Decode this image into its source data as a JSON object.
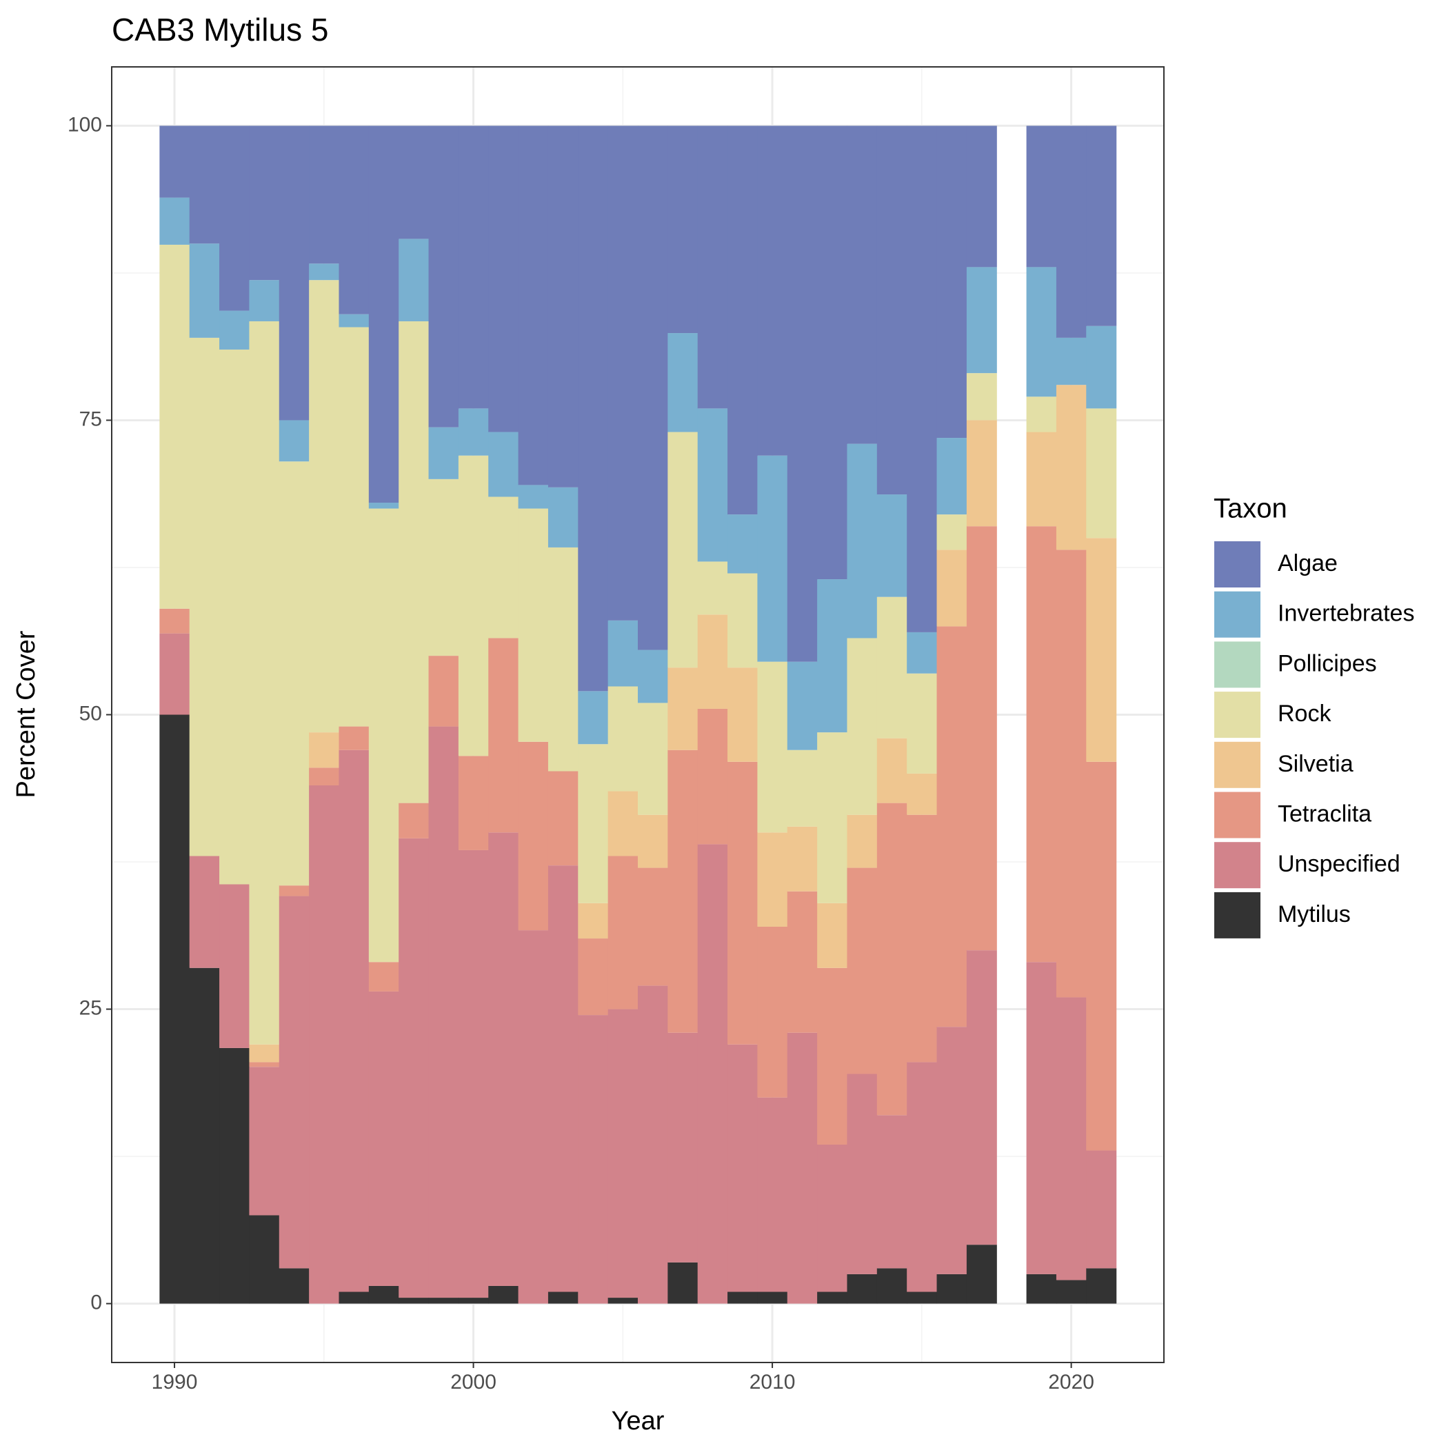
{
  "chart_data": {
    "type": "stacked-bar",
    "title": "CAB3 Mytilus 5",
    "x_label": "Year",
    "y_label": "Percent Cover",
    "legend_title": "Taxon",
    "x": [
      1990,
      1991,
      1992,
      1993,
      1994,
      1995,
      1996,
      1997,
      1998,
      1999,
      2000,
      2001,
      2002,
      2003,
      2004,
      2005,
      2006,
      2007,
      2008,
      2009,
      2010,
      2011,
      2012,
      2013,
      2014,
      2015,
      2016,
      2017,
      2018,
      2019,
      2020,
      2021
    ],
    "series": [
      {
        "name": "Algae",
        "color": "#6f7db8",
        "values": [
          6.1,
          10,
          15.7,
          13.1,
          25,
          11.7,
          16,
          32,
          9.6,
          25.6,
          24,
          26,
          30.5,
          30.7,
          48,
          42,
          44.5,
          17.6,
          24,
          33,
          28,
          45.5,
          38.5,
          27,
          31.3,
          43,
          26.5,
          12,
          null,
          12,
          18,
          17
        ]
      },
      {
        "name": "Invertebrates",
        "color": "#79b0d0",
        "values": [
          4,
          8,
          3.3,
          3.5,
          3.5,
          1.4,
          1.1,
          0.5,
          7,
          4.4,
          4,
          5.5,
          2,
          5.1,
          4.5,
          5.6,
          4.5,
          8.4,
          13,
          5,
          17.5,
          7.5,
          13,
          16.5,
          8.7,
          3.5,
          6.5,
          9,
          null,
          11,
          4,
          7
        ]
      },
      {
        "name": "Pollicipes",
        "color": "#b3d8bf",
        "values": [
          0,
          0,
          0,
          0,
          0,
          0,
          0,
          0,
          0,
          0,
          0,
          0,
          0,
          0,
          0,
          0,
          0,
          0,
          0,
          0,
          0,
          0,
          0,
          0,
          0,
          0,
          0,
          0,
          null,
          0,
          0,
          0
        ]
      },
      {
        "name": "Rock",
        "color": "#e3dfa6",
        "values": [
          30.9,
          44,
          45.4,
          61.4,
          36,
          38.4,
          33.9,
          38.5,
          40.9,
          15,
          25.5,
          12,
          19.8,
          19,
          13.5,
          8.9,
          9.5,
          20,
          4.5,
          8,
          14.5,
          6.5,
          14.5,
          15,
          12,
          8.5,
          3,
          4,
          null,
          3,
          0,
          11
        ]
      },
      {
        "name": "Silvetia",
        "color": "#efc690",
        "values": [
          0,
          0,
          0,
          1.5,
          0,
          3,
          0,
          0,
          0,
          0,
          0,
          0,
          0,
          0,
          3,
          5.5,
          4.5,
          7,
          8,
          8,
          8,
          5.5,
          5.5,
          4.5,
          5.5,
          3.5,
          6.5,
          9,
          null,
          8,
          14,
          19
        ]
      },
      {
        "name": "Tetraclita",
        "color": "#e59784",
        "values": [
          2.1,
          0,
          0,
          0.4,
          0.9,
          1.5,
          2,
          2.5,
          3,
          6,
          8,
          16.5,
          16,
          8,
          6.5,
          13,
          10,
          24,
          11.5,
          24,
          14.5,
          12,
          15,
          17.5,
          26.5,
          21,
          34,
          36,
          null,
          37,
          38,
          33
        ]
      },
      {
        "name": "Unspecified",
        "color": "#d2838b",
        "values": [
          6.9,
          9.5,
          13.9,
          12.6,
          31.6,
          44,
          46,
          25,
          39,
          48.5,
          38,
          38.5,
          31.7,
          36.2,
          24.5,
          24.5,
          27,
          19.5,
          39,
          21,
          16.5,
          23,
          12.5,
          17,
          13,
          19.5,
          21,
          25,
          null,
          26.5,
          24,
          10
        ]
      },
      {
        "name": "Mytilus",
        "color": "#333333",
        "values": [
          50,
          28.5,
          21.7,
          7.5,
          3,
          0,
          1,
          1.5,
          0.5,
          0.5,
          0.5,
          1.5,
          0,
          1,
          0,
          0.5,
          0,
          3.5,
          0,
          1,
          1,
          0,
          1,
          2.5,
          3,
          1,
          2.5,
          5,
          null,
          2.5,
          2,
          3
        ]
      }
    ],
    "xlim": [
      1987.9,
      2023.1
    ],
    "xticks": [
      1990,
      2000,
      2010,
      2020
    ],
    "ylim": [
      -5,
      105
    ],
    "yticks": [
      0,
      25,
      50,
      75,
      100
    ],
    "grid": true
  }
}
